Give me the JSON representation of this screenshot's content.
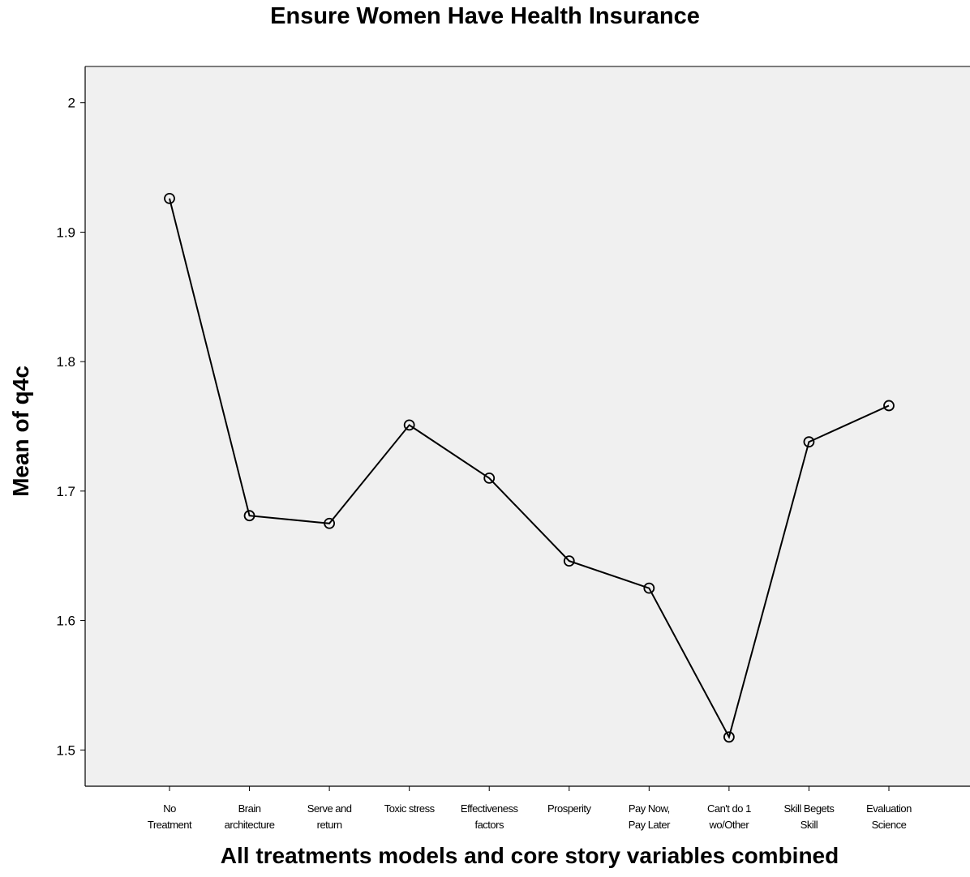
{
  "chart_data": {
    "type": "line",
    "title": "Ensure Women Have Health Insurance",
    "xlabel": "All treatments models and core story variables combined",
    "ylabel": "Mean of q4c",
    "categories": [
      [
        "No",
        "Treatment"
      ],
      [
        "Brain",
        "architecture"
      ],
      [
        "Serve and",
        "return"
      ],
      [
        "Toxic stress"
      ],
      [
        "Effectiveness",
        "factors"
      ],
      [
        "Prosperity"
      ],
      [
        "Pay Now,",
        "Pay Later"
      ],
      [
        "Can't do 1",
        "wo/Other"
      ],
      [
        "Skill Begets",
        "Skill"
      ],
      [
        "Evaluation",
        "Science"
      ]
    ],
    "values": [
      1.926,
      1.681,
      1.675,
      1.751,
      1.71,
      1.646,
      1.625,
      1.51,
      1.738,
      1.766
    ],
    "yticks": [
      "1.5",
      "1.6",
      "1.7",
      "1.8",
      "1.9",
      "2"
    ],
    "ylim": [
      1.472,
      2.028
    ],
    "grid": false,
    "marker": "open-circle",
    "colors": {
      "plot_background": "#f0f0f0",
      "line": "#000000",
      "axis": "#000000"
    }
  }
}
